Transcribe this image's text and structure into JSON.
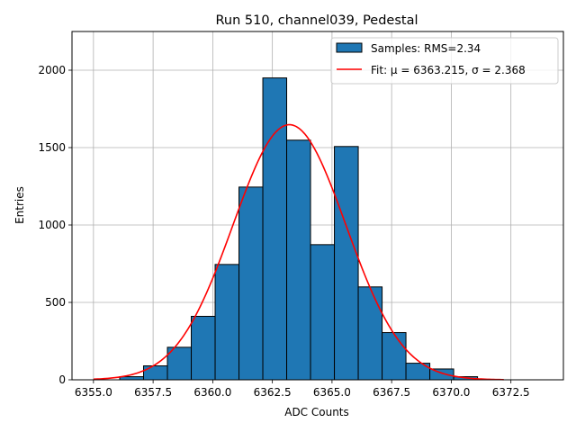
{
  "chart_data": {
    "type": "bar",
    "title": "Run 510, channel039, Pedestal",
    "xlabel": "ADC Counts",
    "ylabel": "Entries",
    "xlim": [
      6354.1,
      6374.7
    ],
    "ylim": [
      0,
      2250
    ],
    "grid": true,
    "legend_position": "top-right",
    "x_ticks": [
      6355.0,
      6357.5,
      6360.0,
      6362.5,
      6365.0,
      6367.5,
      6370.0,
      6372.5
    ],
    "x_tick_labels": [
      "6355.0",
      "6357.5",
      "6360.0",
      "6362.5",
      "6365.0",
      "6367.5",
      "6370.0",
      "6372.5"
    ],
    "y_ticks": [
      0,
      500,
      1000,
      1500,
      2000
    ],
    "y_tick_labels": [
      "0",
      "500",
      "1000",
      "1500",
      "2000"
    ],
    "histogram": {
      "name": "Samples: RMS=2.34",
      "color": "#1f77b4",
      "edge_color": "#000000",
      "bin_edges": [
        6356.1,
        6357.1,
        6358.1,
        6359.1,
        6360.1,
        6361.1,
        6362.1,
        6363.1,
        6364.1,
        6365.1,
        6366.1,
        6367.1,
        6368.1,
        6369.1,
        6370.1,
        6371.1
      ],
      "counts": [
        20,
        90,
        210,
        410,
        745,
        1245,
        1950,
        1548,
        873,
        1507,
        600,
        305,
        107,
        70,
        20
      ]
    },
    "fit": {
      "name": "Fit: μ = 6363.215, σ = 2.368",
      "color": "#ff0000",
      "mu": 6363.215,
      "sigma": 2.368,
      "amplitude": 1648,
      "x_range": [
        6355.0,
        6372.2
      ]
    }
  }
}
